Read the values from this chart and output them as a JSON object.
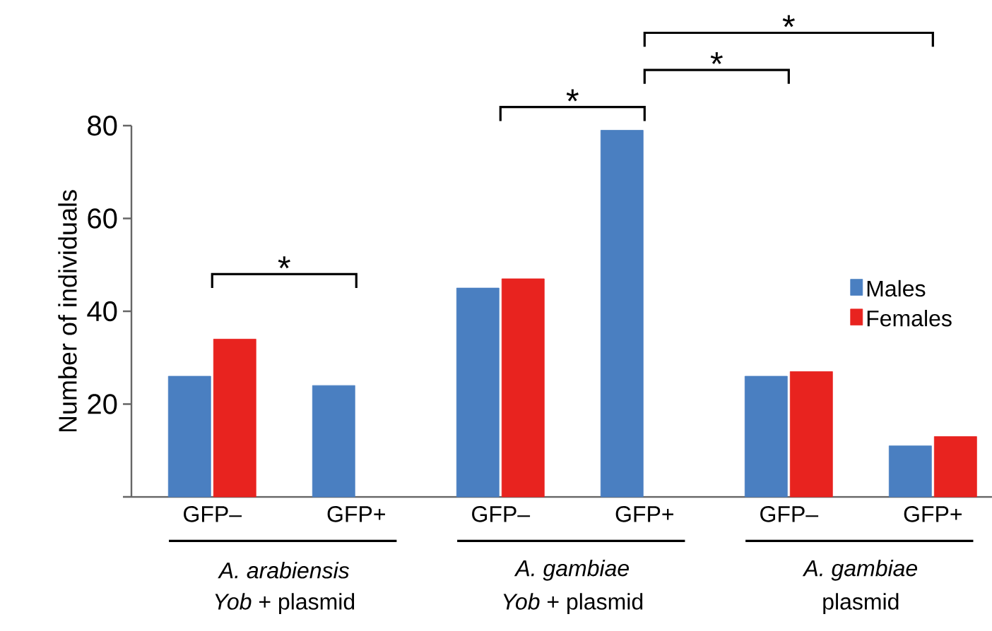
{
  "chart_data": {
    "type": "bar",
    "ylabel": "Number of individuals",
    "categories": [
      "GFP–",
      "GFP+",
      "GFP–",
      "GFP+",
      "GFP–",
      "GFP+"
    ],
    "series": [
      {
        "name": "Males",
        "color": "#4a7fc1",
        "values": [
          26,
          24,
          45,
          79,
          26,
          11
        ]
      },
      {
        "name": "Females",
        "color": "#e8231f",
        "values": [
          34,
          null,
          47,
          null,
          27,
          13
        ]
      }
    ],
    "ylim": [
      0,
      80
    ],
    "yticks": [
      {
        "value": 0,
        "label": null
      },
      20,
      40,
      60,
      80
    ],
    "legend": "right",
    "annotations": [
      "*",
      "*",
      "*",
      "*",
      "A. arabiensis",
      "*Yob* + plasmid",
      "A. gambiae",
      "*Yob* + plasmid",
      "A. gambiae",
      "plasmid"
    ]
  }
}
